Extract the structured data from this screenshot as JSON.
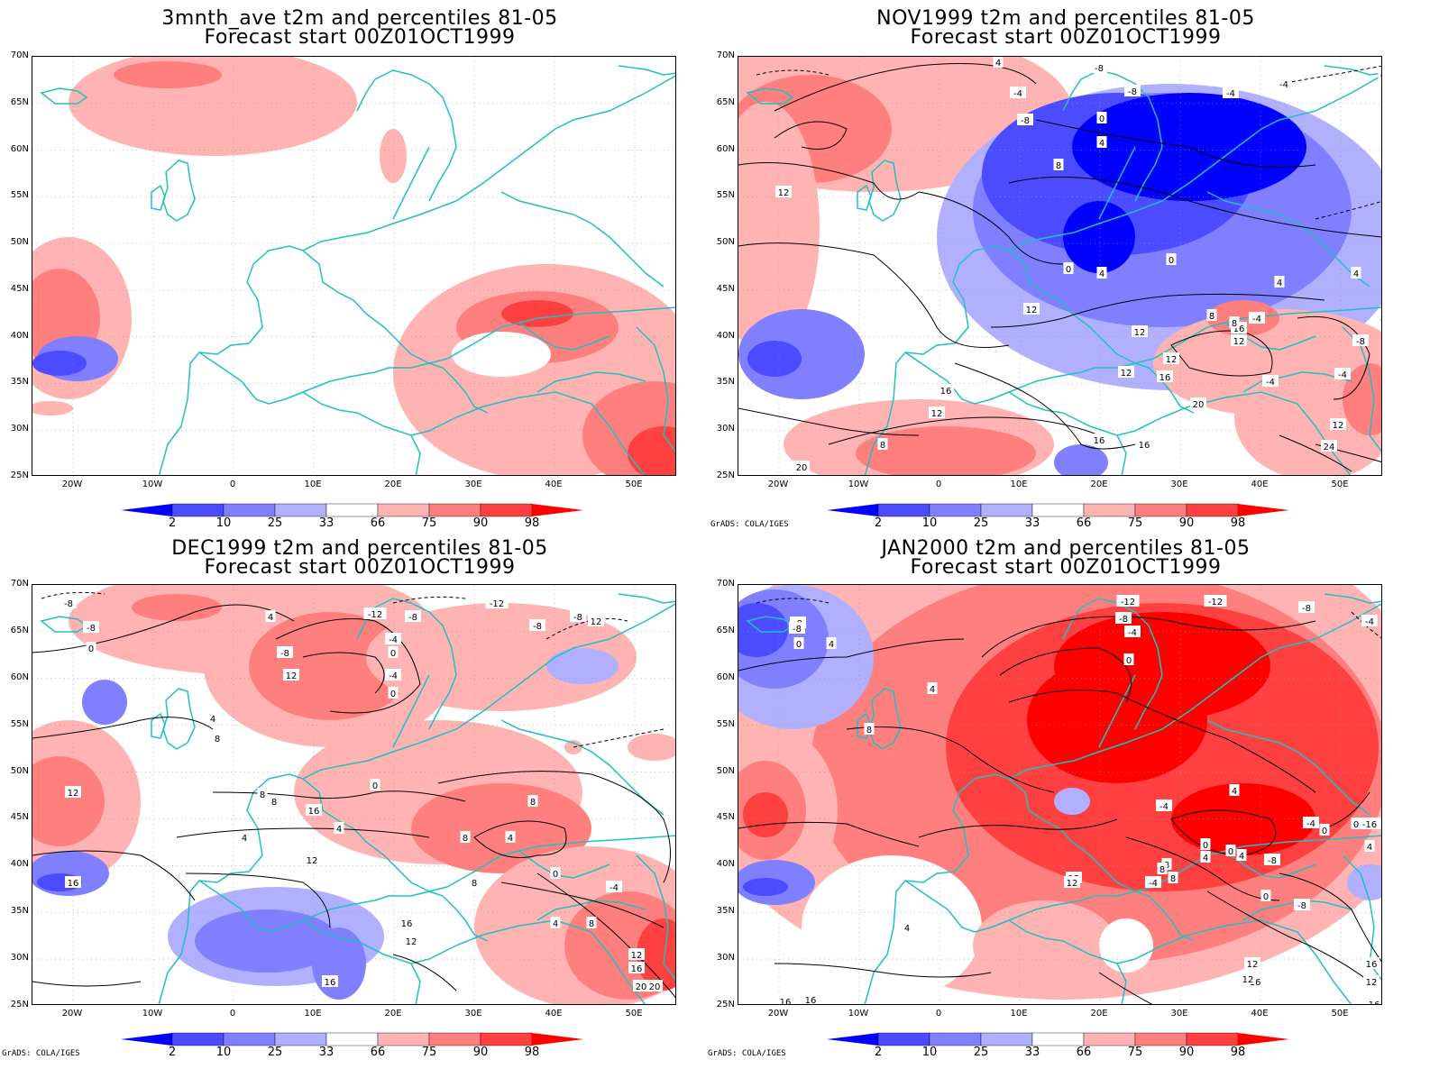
{
  "panels": [
    {
      "title_line1": "3mnth_ave t2m and percentiles 81-05",
      "title_line2": "Forecast start 00Z01OCT1999",
      "credit": ""
    },
    {
      "title_line1": "NOV1999 t2m and percentiles 81-05",
      "title_line2": "Forecast start 00Z01OCT1999",
      "credit": "GrADS: COLA/IGES"
    },
    {
      "title_line1": "DEC1999 t2m and percentiles 81-05",
      "title_line2": "Forecast start 00Z01OCT1999",
      "credit": "GrADS: COLA/IGES"
    },
    {
      "title_line1": "JAN2000 t2m and percentiles 81-05",
      "title_line2": "Forecast start 00Z01OCT1999",
      "credit": "GrADS: COLA/IGES"
    }
  ],
  "lat_labels": [
    "70N",
    "65N",
    "60N",
    "55N",
    "50N",
    "45N",
    "40N",
    "35N",
    "30N",
    "25N"
  ],
  "lon_labels": [
    "20W",
    "10W",
    "0",
    "10E",
    "20E",
    "30E",
    "40E",
    "50E"
  ],
  "colorbar": {
    "labels": [
      "2",
      "10",
      "25",
      "33",
      "66",
      "75",
      "90",
      "98"
    ],
    "colors": [
      "#0000ff",
      "#4b4bff",
      "#7f7fff",
      "#b0b0ff",
      "#ffffff",
      "#ffb3b3",
      "#ff7f7f",
      "#ff4040",
      "#ff0000"
    ]
  },
  "contour_labels": {
    "nov": [
      "4",
      "-8",
      "-4",
      "-8",
      "-4",
      "-8",
      "0",
      "4",
      "8",
      "12",
      "0",
      "4",
      "0",
      "12",
      "8",
      "16",
      "12",
      "16",
      "12",
      "12",
      "16",
      "20",
      "16",
      "20",
      "24",
      "-4",
      "4",
      "8",
      "-8",
      "-4",
      "4",
      "-4",
      "8",
      "12",
      "12",
      "8",
      "12",
      "16",
      "0",
      "-4"
    ],
    "dec": [
      "-8",
      "-8",
      "0",
      "4",
      "-12",
      "-8",
      "-4",
      "0",
      "-12",
      "-8",
      "-8",
      "12",
      "4",
      "8",
      "12",
      "16",
      "8",
      "4",
      "0",
      "8",
      "8",
      "4",
      "12",
      "0",
      "16",
      "8",
      "8",
      "16",
      "12",
      "-4",
      "4",
      "8",
      "12",
      "16",
      "20",
      "-8",
      "-4",
      "0",
      "4",
      "16",
      "12",
      "20"
    ],
    "jan": [
      "-8",
      "-8",
      "0",
      "4",
      "-12",
      "-12",
      "-8",
      "-4",
      "0",
      "4",
      "8",
      "12",
      "16",
      "-8",
      "-4",
      "-4",
      "4",
      "0",
      "4",
      "8",
      "8",
      "-4",
      "0",
      "-8",
      "0",
      "4",
      "8",
      "16",
      "12",
      "12",
      "16",
      "16",
      "12",
      "12",
      "16",
      "4",
      "-4",
      "0",
      "-16",
      "-8",
      "0",
      "4"
    ]
  }
}
